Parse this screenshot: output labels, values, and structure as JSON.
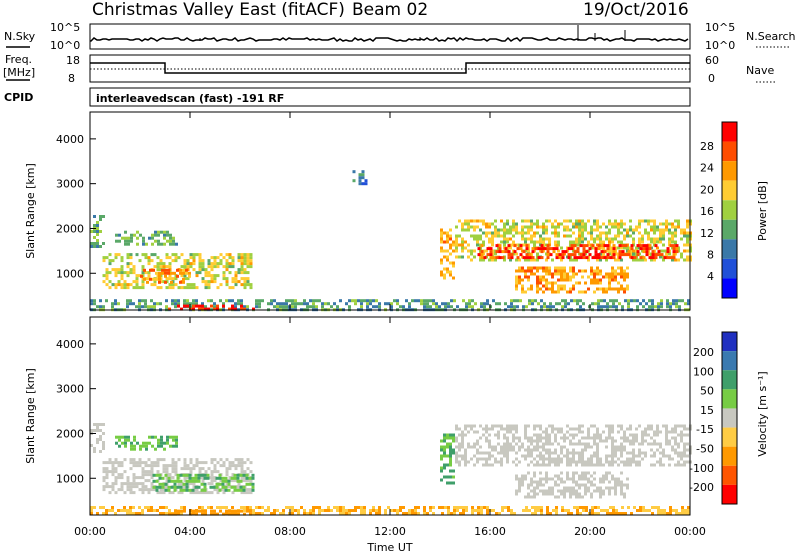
{
  "header": {
    "title": "Christmas Valley East (fitACF)",
    "beam": "Beam 02",
    "date": "19/Oct/2016"
  },
  "top_panels": {
    "nsky_label": "N.Sky",
    "nsearch_label": "N.Search",
    "nsky_ticks": [
      "10^5",
      "10^0"
    ],
    "nsearch_ticks": [
      "10^5",
      "10^0"
    ],
    "freq_label_1": "Freq.",
    "freq_label_2": "[MHz]",
    "freq_ticks": [
      "18",
      "8"
    ],
    "nave_label": "Nave",
    "nave_ticks": [
      "60",
      "0"
    ],
    "cpid_label": "CPID",
    "cpid_text": "interleavedscan (fast) -191 RF"
  },
  "power_scale": {
    "label": "Power [dB]",
    "ticks": [
      "28",
      "24",
      "20",
      "16",
      "12",
      "8",
      "4"
    ],
    "colors": [
      "#ff0000",
      "#ff4d00",
      "#ff9900",
      "#ffcc33",
      "#a0d040",
      "#5aa868",
      "#3a78a8",
      "#2050d8",
      "#0000ff"
    ]
  },
  "velocity_scale": {
    "label": "Velocity [m s⁻¹]",
    "ticks": [
      "200",
      "100",
      "50",
      "15",
      "-15",
      "-50",
      "-100",
      "-200"
    ],
    "colors": [
      "#2030c0",
      "#3a7ab0",
      "#3f9f6a",
      "#77cc44",
      "#c8c8c0",
      "#ffcc44",
      "#ff9900",
      "#ff5500",
      "#ff0000"
    ]
  },
  "chart_data": [
    {
      "type": "heatmap",
      "name_panel": "power",
      "ylabel": "Slant Range [km]",
      "xlabel": "Time UT",
      "x_ticks": [
        "00:00",
        "04:00",
        "08:00",
        "12:00",
        "16:00",
        "20:00",
        "00:00"
      ],
      "y_ticks": [
        "4000",
        "3000",
        "2000",
        "1000"
      ],
      "ylim": [
        180,
        4600
      ],
      "xlim_hours": [
        0,
        24
      ],
      "regions": [
        {
          "t0": 0.0,
          "t1": 0.5,
          "r0": 1600,
          "r1": 2300,
          "value": 12
        },
        {
          "t0": 0.5,
          "t1": 6.5,
          "r0": 650,
          "r1": 1450,
          "value": 16
        },
        {
          "t0": 2.0,
          "t1": 4.0,
          "r0": 800,
          "r1": 1100,
          "value": 22
        },
        {
          "t0": 1.0,
          "t1": 3.5,
          "r0": 1650,
          "r1": 1950,
          "value": 12
        },
        {
          "t0": 10.5,
          "t1": 11.0,
          "r0": 3000,
          "r1": 3300,
          "value": 8
        },
        {
          "t0": 14.0,
          "t1": 14.6,
          "r0": 900,
          "r1": 2000,
          "value": 20
        },
        {
          "t0": 14.6,
          "t1": 24.0,
          "r0": 1300,
          "r1": 2200,
          "value": 16
        },
        {
          "t0": 15.5,
          "t1": 23.5,
          "r0": 1350,
          "r1": 1650,
          "value": 26
        },
        {
          "t0": 17.0,
          "t1": 21.5,
          "r0": 550,
          "r1": 1150,
          "value": 20
        },
        {
          "t0": 0.0,
          "t1": 24.0,
          "r0": 180,
          "r1": 420,
          "value": 10
        },
        {
          "t0": 3.0,
          "t1": 6.5,
          "r0": 180,
          "r1": 300,
          "value": 28
        }
      ]
    },
    {
      "type": "heatmap",
      "name_panel": "velocity",
      "ylabel": "Slant Range [km]",
      "xlabel": "Time UT",
      "x_ticks": [
        "00:00",
        "04:00",
        "08:00",
        "12:00",
        "16:00",
        "20:00",
        "00:00"
      ],
      "y_ticks": [
        "4000",
        "3000",
        "2000",
        "1000"
      ],
      "ylim": [
        180,
        4600
      ],
      "xlim_hours": [
        0,
        24
      ],
      "regions": [
        {
          "t0": 0.0,
          "t1": 0.6,
          "r0": 1600,
          "r1": 2300,
          "value": 0
        },
        {
          "t0": 0.5,
          "t1": 6.5,
          "r0": 700,
          "r1": 1450,
          "value": 0
        },
        {
          "t0": 2.5,
          "t1": 6.5,
          "r0": 700,
          "r1": 1100,
          "value": 30
        },
        {
          "t0": 1.0,
          "t1": 3.5,
          "r0": 1650,
          "r1": 1950,
          "value": 30
        },
        {
          "t0": 14.0,
          "t1": 14.6,
          "r0": 900,
          "r1": 2000,
          "value": 30
        },
        {
          "t0": 14.6,
          "t1": 24.0,
          "r0": 1300,
          "r1": 2200,
          "value": 0
        },
        {
          "t0": 17.0,
          "t1": 21.5,
          "r0": 550,
          "r1": 1150,
          "value": 0
        },
        {
          "t0": 0.0,
          "t1": 24.0,
          "r0": 180,
          "r1": 380,
          "value": -30
        },
        {
          "t0": 3.0,
          "t1": 6.5,
          "r0": 180,
          "r1": 300,
          "value": -60
        }
      ]
    }
  ]
}
